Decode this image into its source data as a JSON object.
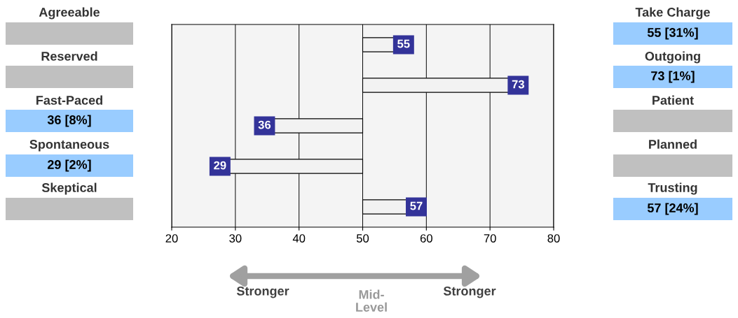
{
  "chart_data": {
    "type": "bar",
    "orientation": "horizontal",
    "categories": [
      null,
      null,
      null,
      null,
      null
    ],
    "series": [
      {
        "color": "#f2f2f2",
        "base": [
          50,
          50,
          50,
          50,
          50
        ],
        "values": [
          5,
          23,
          -14,
          -21,
          7
        ],
        "value_labels": [
          "55",
          "73",
          "36",
          "29",
          "57"
        ]
      }
    ],
    "xlim": [
      20,
      80
    ],
    "xticks": [
      20,
      30,
      40,
      50,
      60,
      70,
      80
    ],
    "grid": "x",
    "legend": false,
    "annotations": [
      "Agreeable",
      "Reserved",
      "Fast-Paced",
      "36 [8%]",
      "Spontaneous",
      "29 [2%]",
      "Skeptical",
      "Take Charge",
      "55 [31%]",
      "Outgoing",
      "73 [1%]",
      "Patient",
      "Planned",
      "Trusting",
      "57 [24%]",
      "Stronger",
      "Mid-\nLevel",
      "Stronger"
    ]
  }
}
